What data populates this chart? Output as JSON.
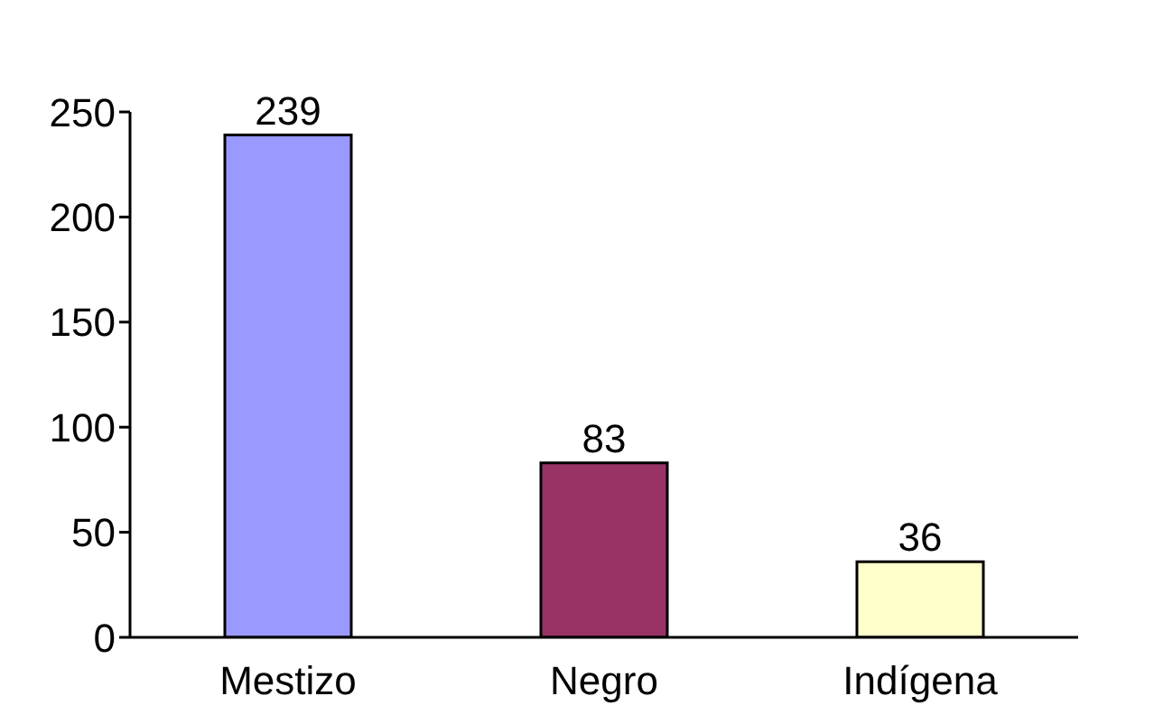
{
  "chart_data": {
    "type": "bar",
    "categories": [
      "Mestizo",
      "Negro",
      "Indígena"
    ],
    "values": [
      239,
      83,
      36
    ],
    "colors": [
      "#9999ff",
      "#993366",
      "#ffffcc"
    ],
    "ylim": [
      0,
      250
    ],
    "yticks": [
      0,
      50,
      100,
      150,
      200,
      250
    ],
    "data_labels": true,
    "grid": false
  }
}
